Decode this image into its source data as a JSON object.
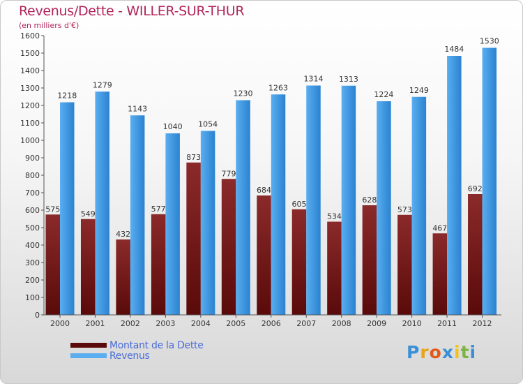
{
  "header": {
    "title": "Revenus/Dette - WILLER-SUR-THUR",
    "subtitle": "(en milliers d'€)"
  },
  "legend": {
    "debt_label": "Montant de la Dette",
    "revenue_label": "Revenus"
  },
  "logo": {
    "letters": [
      "P",
      "r",
      "o",
      "x",
      "i",
      "t",
      "i"
    ],
    "colors": [
      "#3a8fd6",
      "#e8a317",
      "#e05a1a",
      "#3a8fd6",
      "#f2c31c",
      "#7cb342",
      "#3a8fd6"
    ]
  },
  "colors": {
    "debt_top": "#8b2a2a",
    "debt_bottom": "#5a0a0a",
    "revenue_top": "#5aaef0",
    "revenue_bottom": "#2a82d0",
    "axis": "#555555",
    "grid": "#d0d0d0"
  },
  "chart_data": {
    "type": "bar",
    "title": "Revenus/Dette - WILLER-SUR-THUR",
    "ylabel": "(en milliers d'€)",
    "xlabel": "",
    "ylim": [
      0,
      1600
    ],
    "yticks": [
      0,
      100,
      200,
      300,
      400,
      500,
      600,
      700,
      800,
      900,
      1000,
      1100,
      1200,
      1300,
      1400,
      1500,
      1600
    ],
    "categories": [
      "2000",
      "2001",
      "2002",
      "2003",
      "2004",
      "2005",
      "2006",
      "2007",
      "2008",
      "2009",
      "2010",
      "2011",
      "2012"
    ],
    "series": [
      {
        "name": "Montant de la Dette",
        "values": [
          575,
          549,
          432,
          577,
          873,
          779,
          684,
          605,
          534,
          628,
          573,
          467,
          692
        ]
      },
      {
        "name": "Revenus",
        "values": [
          1218,
          1279,
          1143,
          1040,
          1054,
          1230,
          1263,
          1314,
          1313,
          1224,
          1249,
          1484,
          1530
        ]
      }
    ],
    "legend_position": "bottom-left"
  }
}
